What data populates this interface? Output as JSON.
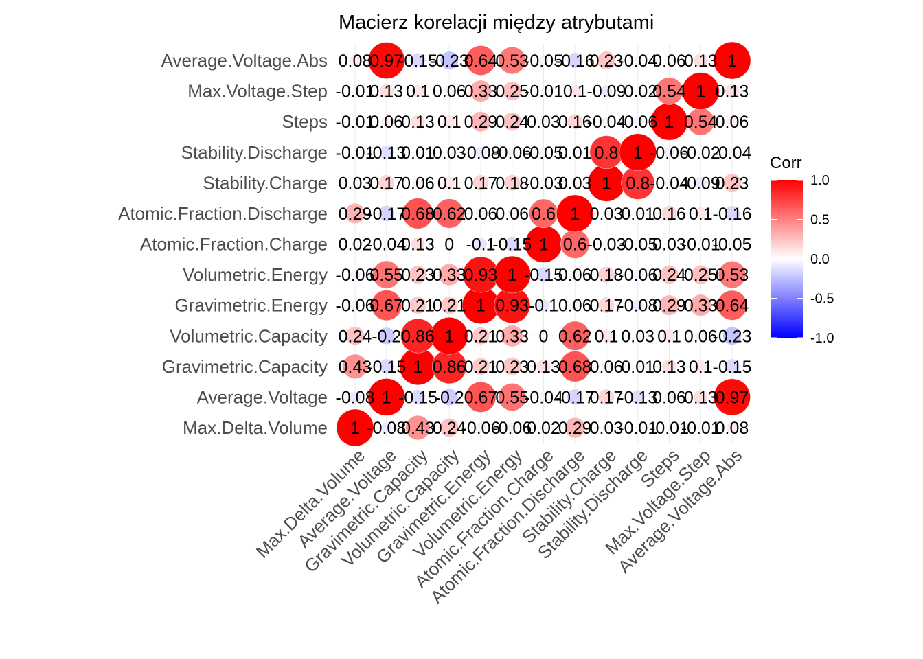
{
  "chart_data": {
    "type": "heatmap",
    "title": "Macierz korelacji między atrybutami",
    "variables": [
      "Max.Delta.Volume",
      "Average.Voltage",
      "Gravimetric.Capacity",
      "Volumetric.Capacity",
      "Gravimetric.Energy",
      "Volumetric.Energy",
      "Atomic.Fraction.Charge",
      "Atomic.Fraction.Discharge",
      "Stability.Charge",
      "Stability.Discharge",
      "Steps",
      "Max.Voltage.Step",
      "Average.Voltage.Abs"
    ],
    "values": [
      [
        1,
        -0.08,
        0.43,
        0.24,
        -0.06,
        -0.06,
        0.02,
        0.29,
        0.03,
        -0.01,
        -0.01,
        -0.01,
        0.08
      ],
      [
        -0.08,
        1,
        -0.15,
        -0.2,
        0.67,
        0.55,
        -0.04,
        -0.17,
        0.17,
        -0.13,
        0.06,
        0.13,
        0.97
      ],
      [
        0.43,
        -0.15,
        1,
        0.86,
        0.21,
        0.23,
        0.13,
        0.68,
        0.06,
        0.01,
        0.13,
        0.1,
        -0.15
      ],
      [
        0.24,
        -0.2,
        0.86,
        1,
        0.21,
        0.33,
        0,
        0.62,
        0.1,
        0.03,
        0.1,
        0.06,
        -0.23
      ],
      [
        -0.06,
        0.67,
        0.21,
        0.21,
        1,
        0.93,
        -0.1,
        0.06,
        0.17,
        -0.08,
        0.29,
        0.33,
        0.64
      ],
      [
        -0.06,
        0.55,
        0.23,
        0.33,
        0.93,
        1,
        -0.15,
        0.06,
        0.18,
        -0.06,
        0.24,
        0.25,
        0.53
      ],
      [
        0.02,
        -0.04,
        0.13,
        0,
        -0.1,
        -0.15,
        1,
        0.6,
        -0.03,
        -0.05,
        0.03,
        -0.01,
        -0.05
      ],
      [
        0.29,
        -0.17,
        0.68,
        0.62,
        0.06,
        0.06,
        0.6,
        1,
        0.03,
        0.01,
        0.16,
        0.1,
        -0.16
      ],
      [
        0.03,
        0.17,
        0.06,
        0.1,
        0.17,
        0.18,
        -0.03,
        0.03,
        1,
        0.8,
        -0.04,
        -0.09,
        0.23
      ],
      [
        -0.01,
        -0.13,
        0.01,
        0.03,
        -0.08,
        -0.06,
        -0.05,
        0.01,
        0.8,
        1,
        -0.06,
        -0.02,
        -0.04
      ],
      [
        -0.01,
        0.06,
        0.13,
        0.1,
        0.29,
        0.24,
        0.03,
        0.16,
        -0.04,
        -0.06,
        1,
        0.54,
        0.06
      ],
      [
        -0.01,
        0.13,
        0.1,
        0.06,
        0.33,
        0.25,
        -0.01,
        0.1,
        -0.09,
        -0.02,
        0.54,
        1,
        0.13
      ],
      [
        0.08,
        0.97,
        -0.15,
        -0.23,
        0.64,
        0.53,
        -0.05,
        -0.16,
        0.23,
        -0.04,
        0.06,
        0.13,
        1
      ]
    ],
    "legend": {
      "title": "Corr",
      "ticks": [
        "1.0",
        "0.5",
        "0.0",
        "-0.5",
        "-1.0"
      ],
      "low_color": "#0000ff",
      "mid_color": "#ffffff",
      "high_color": "#ff0000",
      "range": [
        -1,
        1
      ],
      "position": "right"
    },
    "grid": true
  }
}
